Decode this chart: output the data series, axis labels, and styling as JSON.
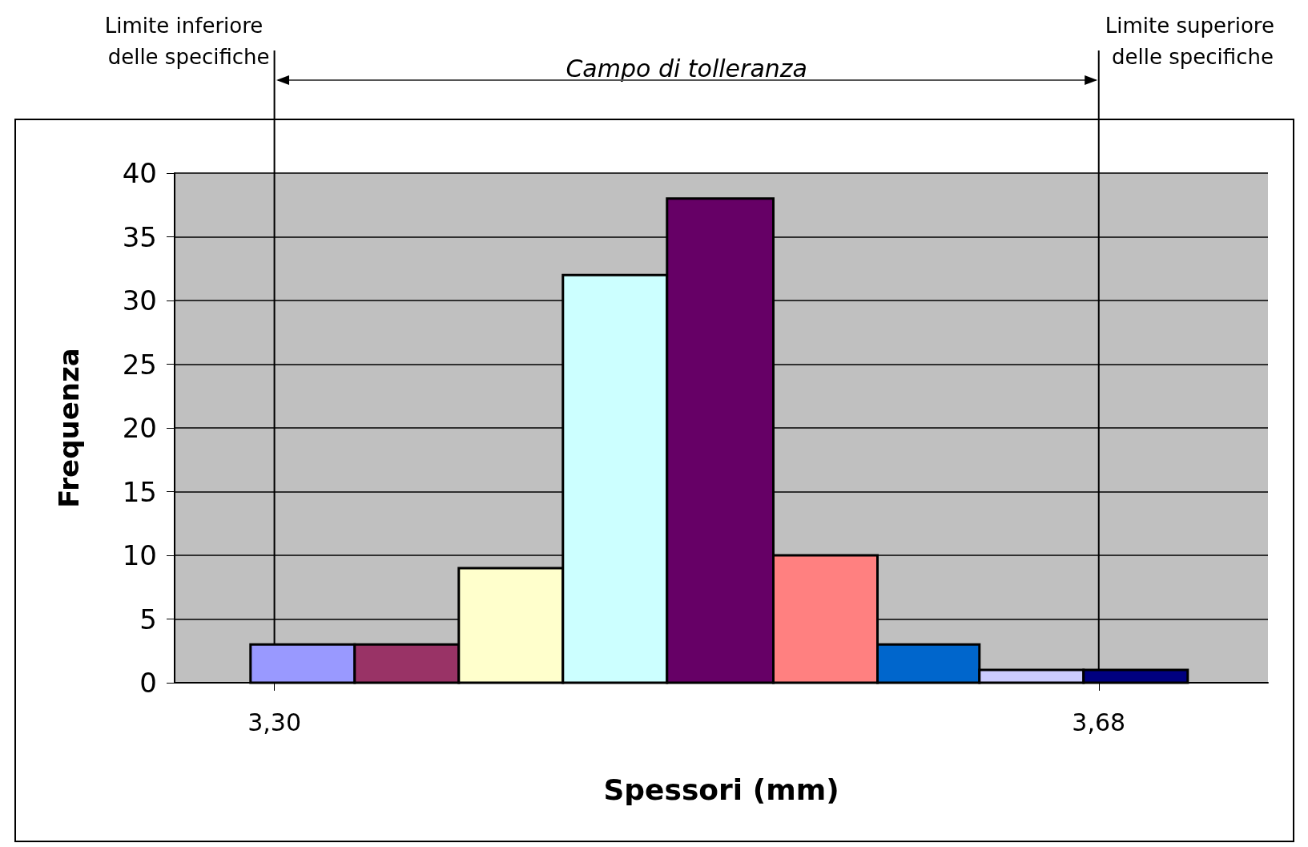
{
  "chart_data": {
    "type": "histogram",
    "xlabel": "Spessori (mm)",
    "ylabel": "Frequenza",
    "bins": [
      3.289,
      3.337,
      3.385,
      3.433,
      3.481,
      3.53,
      3.578,
      3.625,
      3.673,
      3.721
    ],
    "values": [
      3,
      3,
      9,
      32,
      38,
      10,
      3,
      1,
      1
    ],
    "colors": [
      "#9999ff",
      "#993366",
      "#ffffcc",
      "#ccffff",
      "#660066",
      "#ff8080",
      "#0066cc",
      "#ccccff",
      "#000080"
    ],
    "xlim": [
      3.254,
      3.758
    ],
    "xticks": [
      {
        "value": 3.3,
        "label": "3,30"
      },
      {
        "value": 3.68,
        "label": "3,68"
      }
    ],
    "ylim": [
      0,
      40
    ],
    "yticks": [
      0,
      5,
      10,
      15,
      20,
      25,
      30,
      35,
      40
    ],
    "grid": "y",
    "ref_lines": [
      {
        "axis": "x",
        "value": 3.3,
        "label": "Limite inferiore delle specifiche",
        "color": "#000000"
      },
      {
        "axis": "x",
        "value": 3.68,
        "label": "Limite superiore delle specifiche",
        "color": "#000000"
      }
    ],
    "annotations": [
      "Campo di tolleranza"
    ]
  }
}
